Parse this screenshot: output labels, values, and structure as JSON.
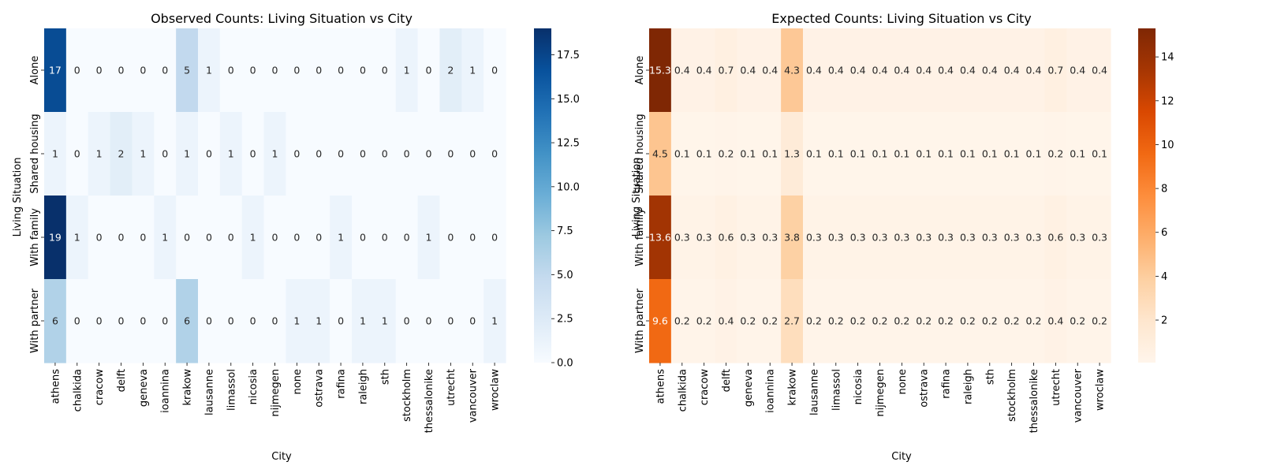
{
  "chart_data": [
    {
      "type": "heatmap",
      "title": "Observed Counts: Living Situation vs City",
      "xlabel": "City",
      "ylabel": "Living Situation",
      "x_categories": [
        "athens",
        "chalkida",
        "cracow",
        "delft",
        "geneva",
        "ioannina",
        "krakow",
        "lausanne",
        "limassol",
        "nicosia",
        "nijmegen",
        "none",
        "ostrava",
        "rafina",
        "raleigh",
        "sth",
        "stockholm",
        "thessalonike",
        "utrecht",
        "vancouver",
        "wroclaw"
      ],
      "y_categories": [
        "Alone",
        "Shared housing",
        "With family",
        "With partner"
      ],
      "values": [
        [
          17,
          0,
          0,
          0,
          0,
          0,
          5,
          1,
          0,
          0,
          0,
          0,
          0,
          0,
          0,
          0,
          1,
          0,
          2,
          1,
          0
        ],
        [
          1,
          0,
          1,
          2,
          1,
          0,
          1,
          0,
          1,
          0,
          1,
          0,
          0,
          0,
          0,
          0,
          0,
          0,
          0,
          0,
          0
        ],
        [
          19,
          1,
          0,
          0,
          0,
          1,
          0,
          0,
          0,
          1,
          0,
          0,
          0,
          1,
          0,
          0,
          0,
          1,
          0,
          0,
          0
        ],
        [
          6,
          0,
          0,
          0,
          0,
          0,
          6,
          0,
          0,
          0,
          0,
          1,
          1,
          0,
          1,
          1,
          0,
          0,
          0,
          0,
          1
        ]
      ],
      "cell_labels": [
        [
          "17",
          "0",
          "0",
          "0",
          "0",
          "0",
          "5",
          "1",
          "0",
          "0",
          "0",
          "0",
          "0",
          "0",
          "0",
          "0",
          "1",
          "0",
          "2",
          "1",
          "0"
        ],
        [
          "1",
          "0",
          "1",
          "2",
          "1",
          "0",
          "1",
          "0",
          "1",
          "0",
          "1",
          "0",
          "0",
          "0",
          "0",
          "0",
          "0",
          "0",
          "0",
          "0",
          "0"
        ],
        [
          "19",
          "1",
          "0",
          "0",
          "0",
          "1",
          "0",
          "0",
          "0",
          "1",
          "0",
          "0",
          "0",
          "1",
          "0",
          "0",
          "0",
          "1",
          "0",
          "0",
          "0"
        ],
        [
          "6",
          "0",
          "0",
          "0",
          "0",
          "0",
          "6",
          "0",
          "0",
          "0",
          "0",
          "1",
          "1",
          "0",
          "1",
          "1",
          "0",
          "0",
          "0",
          "0",
          "1"
        ]
      ],
      "colormap": "Blues",
      "color_range": [
        0,
        19
      ],
      "colorbar_ticks": [
        "0.0",
        "2.5",
        "5.0",
        "7.5",
        "10.0",
        "12.5",
        "15.0",
        "17.5"
      ],
      "grid": false
    },
    {
      "type": "heatmap",
      "title": "Expected Counts: Living Situation vs City",
      "xlabel": "City",
      "ylabel": "Living Situation",
      "x_categories": [
        "athens",
        "chalkida",
        "cracow",
        "delft",
        "geneva",
        "ioannina",
        "krakow",
        "lausanne",
        "limassol",
        "nicosia",
        "nijmegen",
        "none",
        "ostrava",
        "rafina",
        "raleigh",
        "sth",
        "stockholm",
        "thessalonike",
        "utrecht",
        "vancouver",
        "wroclaw"
      ],
      "y_categories": [
        "Alone",
        "Shared housing",
        "With family",
        "With partner"
      ],
      "values": [
        [
          15.3,
          0.4,
          0.4,
          0.7,
          0.4,
          0.4,
          4.3,
          0.4,
          0.4,
          0.4,
          0.4,
          0.4,
          0.4,
          0.4,
          0.4,
          0.4,
          0.4,
          0.4,
          0.7,
          0.4,
          0.4
        ],
        [
          4.5,
          0.1,
          0.1,
          0.2,
          0.1,
          0.1,
          1.3,
          0.1,
          0.1,
          0.1,
          0.1,
          0.1,
          0.1,
          0.1,
          0.1,
          0.1,
          0.1,
          0.1,
          0.2,
          0.1,
          0.1
        ],
        [
          13.6,
          0.3,
          0.3,
          0.6,
          0.3,
          0.3,
          3.8,
          0.3,
          0.3,
          0.3,
          0.3,
          0.3,
          0.3,
          0.3,
          0.3,
          0.3,
          0.3,
          0.3,
          0.6,
          0.3,
          0.3
        ],
        [
          9.6,
          0.2,
          0.2,
          0.4,
          0.2,
          0.2,
          2.7,
          0.2,
          0.2,
          0.2,
          0.2,
          0.2,
          0.2,
          0.2,
          0.2,
          0.2,
          0.2,
          0.2,
          0.4,
          0.2,
          0.2
        ]
      ],
      "cell_labels": [
        [
          "15.3",
          "0.4",
          "0.4",
          "0.7",
          "0.4",
          "0.4",
          "4.3",
          "0.4",
          "0.4",
          "0.4",
          "0.4",
          "0.4",
          "0.4",
          "0.4",
          "0.4",
          "0.4",
          "0.4",
          "0.4",
          "0.7",
          "0.4",
          "0.4"
        ],
        [
          "4.5",
          "0.1",
          "0.1",
          "0.2",
          "0.1",
          "0.1",
          "1.3",
          "0.1",
          "0.1",
          "0.1",
          "0.1",
          "0.1",
          "0.1",
          "0.1",
          "0.1",
          "0.1",
          "0.1",
          "0.1",
          "0.2",
          "0.1",
          "0.1"
        ],
        [
          "13.6",
          "0.3",
          "0.3",
          "0.6",
          "0.3",
          "0.3",
          "3.8",
          "0.3",
          "0.3",
          "0.3",
          "0.3",
          "0.3",
          "0.3",
          "0.3",
          "0.3",
          "0.3",
          "0.3",
          "0.3",
          "0.6",
          "0.3",
          "0.3"
        ],
        [
          "9.6",
          "0.2",
          "0.2",
          "0.4",
          "0.2",
          "0.2",
          "2.7",
          "0.2",
          "0.2",
          "0.2",
          "0.2",
          "0.2",
          "0.2",
          "0.2",
          "0.2",
          "0.2",
          "0.2",
          "0.2",
          "0.4",
          "0.2",
          "0.2"
        ]
      ],
      "colormap": "Oranges",
      "color_range": [
        0.06,
        15.3
      ],
      "colorbar_ticks": [
        "2",
        "4",
        "6",
        "8",
        "10",
        "12",
        "14"
      ],
      "grid": false
    }
  ]
}
